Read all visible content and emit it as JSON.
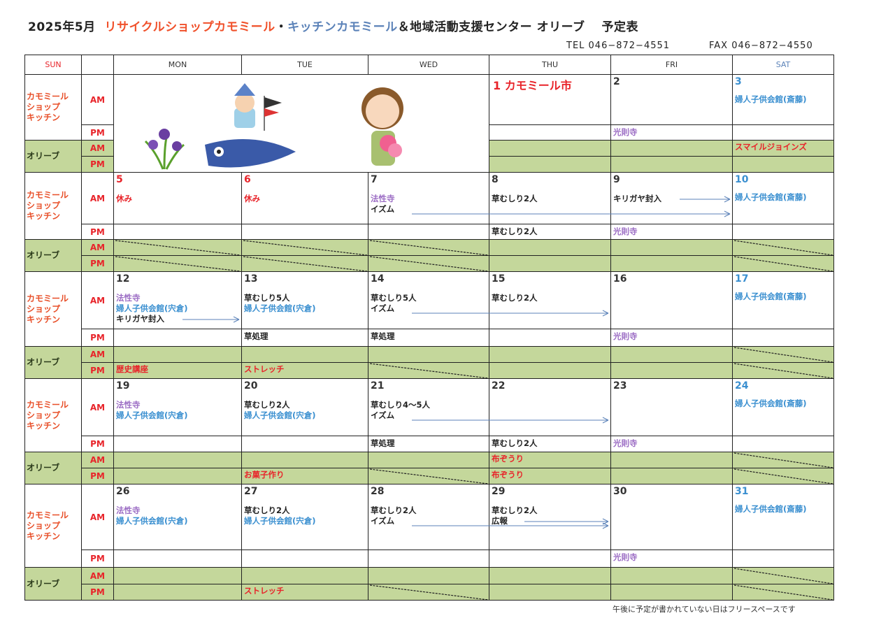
{
  "header": {
    "title_prefix": "2025年5月",
    "title_shop": "リサイクルショップカモミール",
    "title_dot": "・",
    "title_kitchen": "キッチンカモミール",
    "title_suffix": "＆地域活動支援センター オリーブ　 予定表",
    "tel": "TEL 046−872−4551",
    "fax": "FAX 046−872−4550"
  },
  "colors": {
    "red": "#e8242a",
    "blue": "#3a8fd0",
    "purple": "#9b6cc4",
    "black": "#222222",
    "olive": "#c4d79b",
    "arrow": "#5b82b8"
  },
  "days_of_week": {
    "sun": "SUN",
    "mon": "MON",
    "tue": "TUE",
    "wed": "WED",
    "thu": "THU",
    "fri": "FRI",
    "sat": "SAT"
  },
  "row_labels": {
    "shop": "カモミール\nショップ\nキッチン",
    "olive": "オリーブ",
    "am": "AM",
    "pm": "PM"
  },
  "weeks": [
    {
      "illustration": true,
      "days": [
        null,
        null,
        null,
        {
          "date": "1  カモミール市",
          "date_color": "red",
          "am": [],
          "pm": [],
          "olive_am": [],
          "olive_pm": []
        },
        {
          "date": "2",
          "am": [],
          "pm": [
            {
              "t": "光則寺",
              "c": "purple"
            }
          ],
          "olive_am": [],
          "olive_pm": []
        },
        {
          "date": "3",
          "date_color": "blue",
          "am": [
            {
              "t": "婦人子供会館(斎藤)",
              "c": "blue"
            }
          ],
          "pm": [],
          "olive_am": [
            {
              "t": "スマイルジョインズ",
              "c": "red"
            }
          ],
          "olive_pm": []
        }
      ]
    },
    {
      "days": [
        {
          "date": "5",
          "date_color": "red",
          "am": [
            {
              "t": "休み",
              "c": "red"
            }
          ],
          "pm": [],
          "olive_am": [],
          "olive_pm": [],
          "olive_am_closed": true,
          "olive_pm_closed": true
        },
        {
          "date": "6",
          "date_color": "red",
          "am": [
            {
              "t": "休み",
              "c": "red"
            }
          ],
          "pm": [],
          "olive_am": [],
          "olive_pm": [],
          "olive_am_closed": true,
          "olive_pm_closed": true
        },
        {
          "date": "7",
          "am": [
            {
              "t": "法性寺",
              "c": "purple"
            },
            {
              "t": "イズム",
              "c": "black",
              "continues_until": "10"
            }
          ],
          "pm": [],
          "olive_am": [],
          "olive_pm": [],
          "olive_am_closed": true,
          "olive_pm_closed": true
        },
        {
          "date": "8",
          "am": [
            {
              "t": "草むしり2人",
              "c": "black"
            }
          ],
          "pm": [
            {
              "t": "草むしり2人",
              "c": "black"
            }
          ],
          "olive_am": [],
          "olive_pm": []
        },
        {
          "date": "9",
          "am": [
            {
              "t": "キリガヤ封入",
              "c": "black",
              "continues_until": "10"
            }
          ],
          "pm": [
            {
              "t": "光則寺",
              "c": "purple"
            }
          ],
          "olive_am": [],
          "olive_pm": []
        },
        {
          "date": "10",
          "date_color": "blue",
          "am": [
            {
              "t": "婦人子供会館(斎藤)",
              "c": "blue"
            }
          ],
          "pm": [],
          "olive_am": [],
          "olive_pm": [],
          "olive_am_closed": true,
          "olive_pm_closed": true
        }
      ]
    },
    {
      "days": [
        {
          "date": "12",
          "am": [
            {
              "t": "法性寺",
              "c": "purple"
            },
            {
              "t": "婦人子供会館(宍倉)",
              "c": "blue"
            },
            {
              "t": "キリガヤ封入",
              "c": "black",
              "continues_until": "13"
            }
          ],
          "pm": [],
          "olive_am": [],
          "olive_pm": [
            {
              "t": "歴史講座",
              "c": "red"
            }
          ]
        },
        {
          "date": "13",
          "am": [
            {
              "t": "草むしり5人",
              "c": "black"
            },
            {
              "t": "婦人子供会館(宍倉)",
              "c": "blue"
            }
          ],
          "pm": [
            {
              "t": "草処理",
              "c": "black"
            }
          ],
          "olive_am": [],
          "olive_pm": [
            {
              "t": "ストレッチ",
              "c": "red"
            }
          ]
        },
        {
          "date": "14",
          "am": [
            {
              "t": "草むしり5人",
              "c": "black"
            },
            {
              "t": "イズム",
              "c": "black",
              "continues_until": "16"
            }
          ],
          "pm": [
            {
              "t": "草処理",
              "c": "black"
            }
          ],
          "olive_am": [],
          "olive_pm": [],
          "olive_pm_closed": true
        },
        {
          "date": "15",
          "am": [
            {
              "t": "草むしり2人",
              "c": "black"
            }
          ],
          "pm": [],
          "olive_am": [],
          "olive_pm": []
        },
        {
          "date": "16",
          "am": [],
          "pm": [
            {
              "t": "光則寺",
              "c": "purple"
            }
          ],
          "olive_am": [],
          "olive_pm": []
        },
        {
          "date": "17",
          "date_color": "blue",
          "am": [
            {
              "t": "婦人子供会館(斎藤)",
              "c": "blue"
            }
          ],
          "pm": [],
          "olive_am": [],
          "olive_pm": [],
          "olive_am_closed": true,
          "olive_pm_closed": true
        }
      ]
    },
    {
      "days": [
        {
          "date": "19",
          "am": [
            {
              "t": "法性寺",
              "c": "purple"
            },
            {
              "t": "婦人子供会館(宍倉)",
              "c": "blue"
            }
          ],
          "pm": [],
          "olive_am": [],
          "olive_pm": []
        },
        {
          "date": "20",
          "am": [
            {
              "t": "草むしり2人",
              "c": "black"
            },
            {
              "t": "婦人子供会館(宍倉)",
              "c": "blue"
            }
          ],
          "pm": [],
          "olive_am": [],
          "olive_pm": [
            {
              "t": "お菓子作り",
              "c": "red"
            }
          ]
        },
        {
          "date": "21",
          "am": [
            {
              "t": "草むしり4〜5人",
              "c": "black"
            },
            {
              "t": "イズム",
              "c": "black",
              "continues_until": "23"
            }
          ],
          "pm": [
            {
              "t": "草処理",
              "c": "black"
            }
          ],
          "olive_am": [],
          "olive_pm": [],
          "olive_pm_closed": true
        },
        {
          "date": "22",
          "am": [],
          "pm": [
            {
              "t": "草むしり2人",
              "c": "black"
            }
          ],
          "olive_am": [
            {
              "t": "布ぞうり",
              "c": "red"
            }
          ],
          "olive_pm": [
            {
              "t": "布ぞうり",
              "c": "red"
            }
          ]
        },
        {
          "date": "23",
          "am": [],
          "pm": [
            {
              "t": "光則寺",
              "c": "purple"
            }
          ],
          "olive_am": [],
          "olive_pm": []
        },
        {
          "date": "24",
          "date_color": "blue",
          "am": [
            {
              "t": "婦人子供会館(斎藤)",
              "c": "blue"
            }
          ],
          "pm": [],
          "olive_am": [],
          "olive_pm": [],
          "olive_am_closed": true,
          "olive_pm_closed": true
        }
      ]
    },
    {
      "days": [
        {
          "date": "26",
          "am": [
            {
              "t": "法性寺",
              "c": "purple"
            },
            {
              "t": "婦人子供会館(宍倉)",
              "c": "blue"
            }
          ],
          "pm": [],
          "olive_am": [],
          "olive_pm": []
        },
        {
          "date": "27",
          "am": [
            {
              "t": "草むしり2人",
              "c": "black"
            },
            {
              "t": "婦人子供会館(宍倉)",
              "c": "blue"
            }
          ],
          "pm": [],
          "olive_am": [],
          "olive_pm": [
            {
              "t": "ストレッチ",
              "c": "red"
            }
          ]
        },
        {
          "date": "28",
          "am": [
            {
              "t": "草むしり2人",
              "c": "black"
            },
            {
              "t": "イズム",
              "c": "black",
              "continues_until": "30"
            }
          ],
          "pm": [],
          "olive_am": [],
          "olive_pm": [],
          "olive_pm_closed": true
        },
        {
          "date": "29",
          "am": [
            {
              "t": "草むしり2人",
              "c": "black"
            },
            {
              "t": "広報",
              "c": "black",
              "continues_until": "30"
            }
          ],
          "pm": [],
          "olive_am": [],
          "olive_pm": []
        },
        {
          "date": "30",
          "am": [],
          "pm": [
            {
              "t": "光則寺",
              "c": "purple"
            }
          ],
          "olive_am": [],
          "olive_pm": []
        },
        {
          "date": "31",
          "date_color": "blue",
          "am": [
            {
              "t": "婦人子供会館(斎藤)",
              "c": "blue"
            }
          ],
          "pm": [],
          "olive_am": [],
          "olive_pm": [],
          "olive_am_closed": true,
          "olive_pm_closed": true
        }
      ]
    }
  ],
  "footer_note": "午後に予定が書かれていない日はフリースペースです"
}
